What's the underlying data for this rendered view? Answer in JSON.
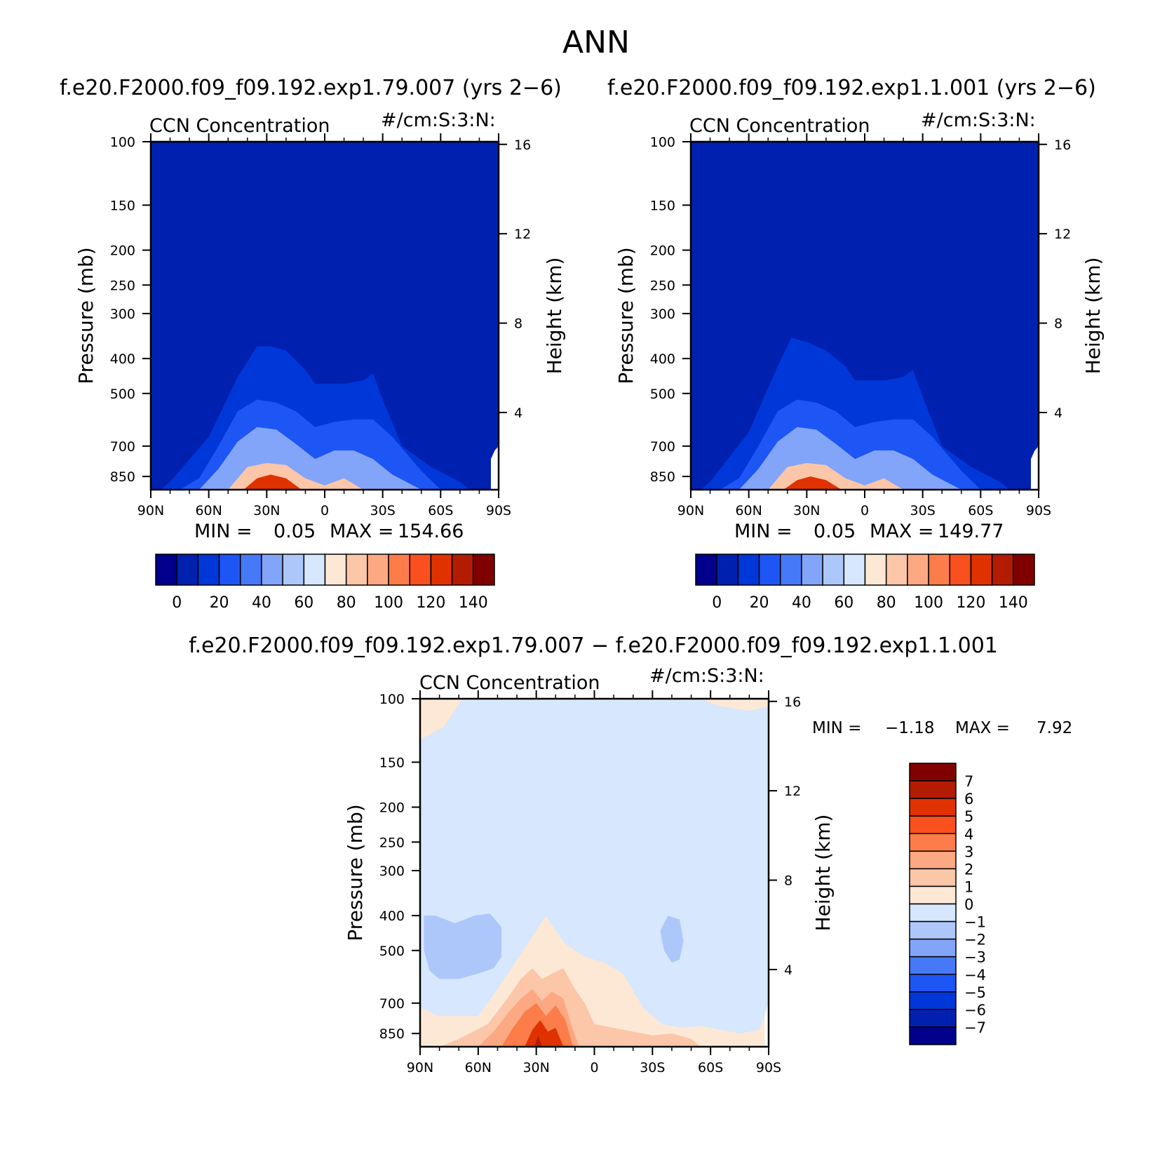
{
  "figure": {
    "title": "ANN",
    "diff_title": "f.e20.F2000.f09_f09.192.exp1.79.007 − f.e20.F2000.f09_f09.192.exp1.1.001"
  },
  "colors": {
    "levels_abs": [
      "#00008c",
      "#0020b0",
      "#0037d8",
      "#1e55f5",
      "#4679f7",
      "#82a5f9",
      "#aec7fb",
      "#d6e7fe",
      "#fde8d6",
      "#fcc6a8",
      "#fca882",
      "#fc7c4a",
      "#f9501e",
      "#e03200",
      "#b31c00",
      "#800000"
    ],
    "levels_diff": [
      "#00008c",
      "#0020b0",
      "#0037d8",
      "#1e55f5",
      "#4679f7",
      "#82a5f9",
      "#aec7fb",
      "#d6e7fe",
      "#fde8d6",
      "#fcc6a8",
      "#fca882",
      "#fc7c4a",
      "#f9501e",
      "#e03200",
      "#b31c00",
      "#800000"
    ]
  },
  "chart_data": [
    {
      "type": "heatmap",
      "case_title": "f.e20.F2000.f09_f09.192.exp1.79.007 (yrs 2−6)",
      "title": "CCN Concentration",
      "units": "#/cm:S:3:N:",
      "xlabel": "",
      "ylabel": "Pressure (mb)",
      "y2label": "Height (km)",
      "x_ticks": [
        "90N",
        "60N",
        "30N",
        "0",
        "30S",
        "60S",
        "90S"
      ],
      "y_ticks": [
        "100",
        "150",
        "200",
        "250",
        "300",
        "400",
        "500",
        "700",
        "850"
      ],
      "y2_ticks": [
        "16",
        "12",
        "8",
        "4"
      ],
      "xlim": [
        90,
        -90
      ],
      "ylim": [
        100,
        925
      ],
      "y_scale": "log",
      "grid": false,
      "min_label": "MIN =",
      "min": "0.05",
      "max_label": "MAX =",
      "max": "154.66",
      "colorbar": {
        "orientation": "horizontal",
        "tick_labels": [
          "0",
          "20",
          "40",
          "60",
          "80",
          "100",
          "120",
          "140"
        ]
      },
      "contour_tops_mb": [
        {
          "value": 10,
          "lat": [
            85,
            80,
            60,
            45,
            35,
            28,
            20,
            10,
            5,
            0,
            -10,
            -20,
            -25,
            -30,
            -40,
            -55,
            -70,
            -75
          ],
          "p": [
            925,
            880,
            660,
            450,
            370,
            370,
            380,
            430,
            470,
            470,
            470,
            460,
            440,
            520,
            700,
            800,
            880,
            925
          ]
        },
        {
          "value": 20,
          "lat": [
            75,
            65,
            55,
            45,
            35,
            25,
            15,
            5,
            -5,
            -15,
            -25,
            -35,
            -50,
            -60
          ],
          "p": [
            925,
            860,
            700,
            560,
            520,
            530,
            560,
            620,
            600,
            590,
            590,
            660,
            820,
            925
          ]
        },
        {
          "value": 40,
          "lat": [
            65,
            55,
            45,
            35,
            25,
            15,
            5,
            -5,
            -15,
            -25,
            -35,
            -50
          ],
          "p": [
            925,
            810,
            680,
            620,
            630,
            690,
            760,
            720,
            720,
            760,
            840,
            925
          ]
        },
        {
          "value": 80,
          "lat": [
            50,
            40,
            30,
            20,
            10,
            0,
            -10,
            -20
          ],
          "p": [
            925,
            800,
            780,
            790,
            860,
            900,
            860,
            925
          ]
        },
        {
          "value": 120,
          "lat": [
            42,
            35,
            28,
            20,
            12
          ],
          "p": [
            925,
            860,
            840,
            860,
            925
          ]
        }
      ]
    },
    {
      "type": "heatmap",
      "case_title": "f.e20.F2000.f09_f09.192.exp1.1.001 (yrs 2−6)",
      "title": "CCN Concentration",
      "units": "#/cm:S:3:N:",
      "xlabel": "",
      "ylabel": "Pressure (mb)",
      "y2label": "Height (km)",
      "x_ticks": [
        "90N",
        "60N",
        "30N",
        "0",
        "30S",
        "60S",
        "90S"
      ],
      "y_ticks": [
        "100",
        "150",
        "200",
        "250",
        "300",
        "400",
        "500",
        "700",
        "850"
      ],
      "y2_ticks": [
        "16",
        "12",
        "8",
        "4"
      ],
      "xlim": [
        90,
        -90
      ],
      "ylim": [
        100,
        925
      ],
      "y_scale": "log",
      "grid": false,
      "min_label": "MIN =",
      "min": "0.05",
      "max_label": "MAX =",
      "max": "149.77",
      "colorbar": {
        "orientation": "horizontal",
        "tick_labels": [
          "0",
          "20",
          "40",
          "60",
          "80",
          "100",
          "120",
          "140"
        ]
      },
      "contour_tops_mb": [
        {
          "value": 10,
          "lat": [
            85,
            80,
            60,
            45,
            38,
            30,
            20,
            10,
            5,
            0,
            -10,
            -20,
            -25,
            -30,
            -40,
            -55,
            -70,
            -75
          ],
          "p": [
            925,
            880,
            640,
            420,
            350,
            360,
            380,
            420,
            460,
            460,
            460,
            450,
            430,
            510,
            700,
            800,
            880,
            925
          ]
        },
        {
          "value": 20,
          "lat": [
            75,
            65,
            55,
            45,
            35,
            25,
            15,
            5,
            -5,
            -15,
            -25,
            -35,
            -50,
            -60
          ],
          "p": [
            925,
            860,
            700,
            560,
            520,
            530,
            560,
            620,
            600,
            590,
            590,
            660,
            820,
            925
          ]
        },
        {
          "value": 40,
          "lat": [
            65,
            55,
            45,
            35,
            25,
            15,
            5,
            -5,
            -15,
            -25,
            -35,
            -50
          ],
          "p": [
            925,
            810,
            680,
            620,
            630,
            690,
            760,
            720,
            720,
            760,
            840,
            925
          ]
        },
        {
          "value": 80,
          "lat": [
            50,
            40,
            30,
            20,
            10,
            0,
            -10,
            -20
          ],
          "p": [
            925,
            800,
            780,
            790,
            860,
            900,
            860,
            925
          ]
        },
        {
          "value": 120,
          "lat": [
            42,
            35,
            28,
            20,
            12
          ],
          "p": [
            925,
            870,
            850,
            870,
            925
          ]
        }
      ]
    },
    {
      "type": "heatmap",
      "title": "CCN Concentration",
      "units": "#/cm:S:3:N:",
      "xlabel": "",
      "ylabel": "Pressure (mb)",
      "y2label": "Height (km)",
      "x_ticks": [
        "90N",
        "60N",
        "30N",
        "0",
        "30S",
        "60S",
        "90S"
      ],
      "y_ticks": [
        "100",
        "150",
        "200",
        "250",
        "300",
        "400",
        "500",
        "700",
        "850"
      ],
      "y2_ticks": [
        "16",
        "12",
        "8",
        "4"
      ],
      "xlim": [
        90,
        -90
      ],
      "ylim": [
        100,
        925
      ],
      "y_scale": "log",
      "grid": false,
      "min_label": "MIN =",
      "min": "−1.18",
      "max_label": "MAX =",
      "max": "7.92",
      "colorbar": {
        "orientation": "vertical",
        "tick_labels": [
          "7",
          "6",
          "5",
          "4",
          "3",
          "2",
          "1",
          "0",
          "−1",
          "−2",
          "−3",
          "−4",
          "−5",
          "−6",
          "−7"
        ]
      },
      "regions": [
        {
          "value": 0.5,
          "lat": [
            90,
            90,
            78,
            68,
            65
          ],
          "p": [
            100,
            130,
            120,
            100,
            100
          ]
        },
        {
          "value": 0.5,
          "lat": [
            -55,
            -65,
            -80,
            -90,
            -90
          ],
          "p": [
            100,
            105,
            108,
            105,
            100
          ]
        },
        {
          "value": -1.5,
          "lat": [
            88,
            88,
            85,
            80,
            70,
            60,
            52,
            48,
            48,
            54,
            62,
            72,
            82
          ],
          "p": [
            400,
            500,
            570,
            600,
            600,
            580,
            560,
            520,
            430,
            395,
            400,
            420,
            400
          ]
        },
        {
          "value": -1.5,
          "lat": [
            -38,
            -44,
            -46,
            -44,
            -40,
            -36,
            -34
          ],
          "p": [
            400,
            410,
            470,
            530,
            540,
            500,
            440
          ]
        },
        {
          "value": 0.5,
          "lat": [
            90,
            90,
            80,
            60,
            50,
            40,
            30,
            25,
            20,
            15,
            10,
            5,
            -5,
            -15,
            -25,
            -35,
            -45,
            -55,
            -65,
            -75,
            -85,
            -90,
            -90
          ],
          "p": [
            925,
            720,
            760,
            760,
            640,
            530,
            440,
            400,
            440,
            480,
            500,
            520,
            540,
            580,
            720,
            800,
            820,
            810,
            830,
            850,
            830,
            720,
            925
          ]
        },
        {
          "value": 1.5,
          "lat": [
            80,
            70,
            55,
            45,
            38,
            32,
            27,
            22,
            16,
            10,
            5,
            0,
            -10,
            -20,
            -30,
            -40,
            -50,
            -55
          ],
          "p": [
            925,
            880,
            800,
            680,
            600,
            560,
            600,
            580,
            560,
            640,
            700,
            800,
            820,
            840,
            860,
            850,
            880,
            925
          ]
        },
        {
          "value": 2.5,
          "lat": [
            60,
            52,
            45,
            38,
            32,
            27,
            22,
            16,
            12,
            8
          ],
          "p": [
            925,
            840,
            750,
            680,
            640,
            690,
            650,
            680,
            800,
            925
          ]
        },
        {
          "value": 3.5,
          "lat": [
            48,
            42,
            36,
            30,
            25,
            20,
            15,
            11
          ],
          "p": [
            925,
            820,
            740,
            700,
            760,
            710,
            780,
            925
          ]
        },
        {
          "value": 5.5,
          "lat": [
            36,
            32,
            28,
            24,
            20,
            16
          ],
          "p": [
            925,
            830,
            780,
            840,
            820,
            925
          ]
        },
        {
          "value": 6.5,
          "lat": [
            31,
            29,
            27
          ],
          "p": [
            925,
            860,
            925
          ]
        }
      ]
    }
  ]
}
